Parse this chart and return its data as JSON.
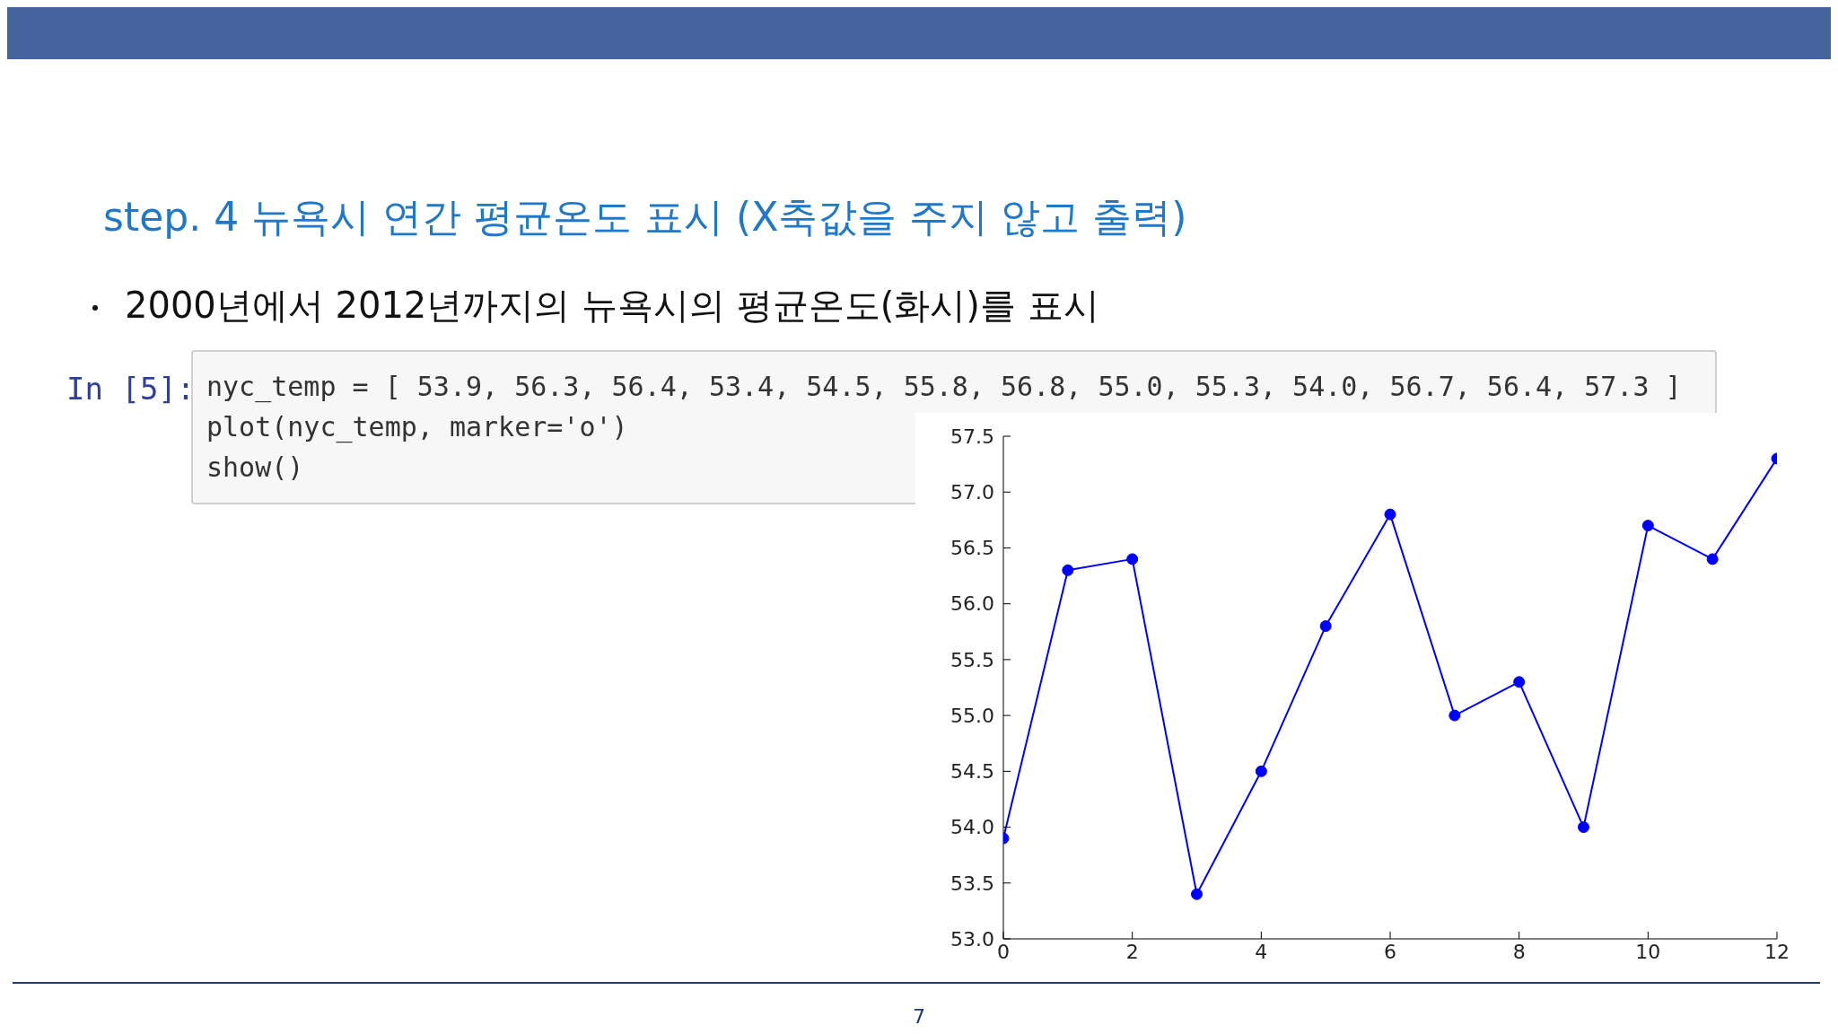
{
  "chart_data": {
    "type": "line",
    "subtitle": "step. 4 뉴욕시 연간 평균온도 표시 (X축값을 주지 않고 출력)",
    "annotations": [
      "2000년에서 2012년까지의 뉴욕시의 평균온도(화시)를 표시",
      "In [5]:",
      "nyc_temp = [ 53.9, 56.3, 56.4, 53.4, 54.5, 55.8, 56.8, 55.0, 55.3, 54.0, 56.7, 56.4, 57.3 ]",
      "plot(nyc_temp, marker='o')",
      "show()",
      "7"
    ],
    "x": [
      0,
      1,
      2,
      3,
      4,
      5,
      6,
      7,
      8,
      9,
      10,
      11,
      12
    ],
    "series": [
      {
        "color": "#0000ff",
        "values": [
          53.9,
          56.3,
          56.4,
          53.4,
          54.5,
          55.8,
          56.8,
          55.0,
          55.3,
          54.0,
          56.7,
          56.4,
          57.3
        ]
      }
    ],
    "xlim": [
      0,
      12
    ],
    "xticks": [
      0,
      2,
      4,
      6,
      8,
      10,
      12
    ],
    "ylim": [
      53,
      57.5
    ],
    "yticks": [
      {
        "value": 53,
        "label": "53.0"
      },
      {
        "value": 53.5,
        "label": "53.5"
      },
      {
        "value": 54,
        "label": "54.0"
      },
      {
        "value": 54.5,
        "label": "54.5"
      },
      {
        "value": 55,
        "label": "55.0"
      },
      {
        "value": 55.5,
        "label": "55.5"
      },
      {
        "value": 56,
        "label": "56.0"
      },
      {
        "value": 56.5,
        "label": "56.5"
      },
      {
        "value": 57,
        "label": "57.0"
      },
      {
        "value": 57.5,
        "label": "57.5"
      }
    ],
    "grid": false,
    "legend": false,
    "marker": "circle",
    "line_style": "solid"
  }
}
